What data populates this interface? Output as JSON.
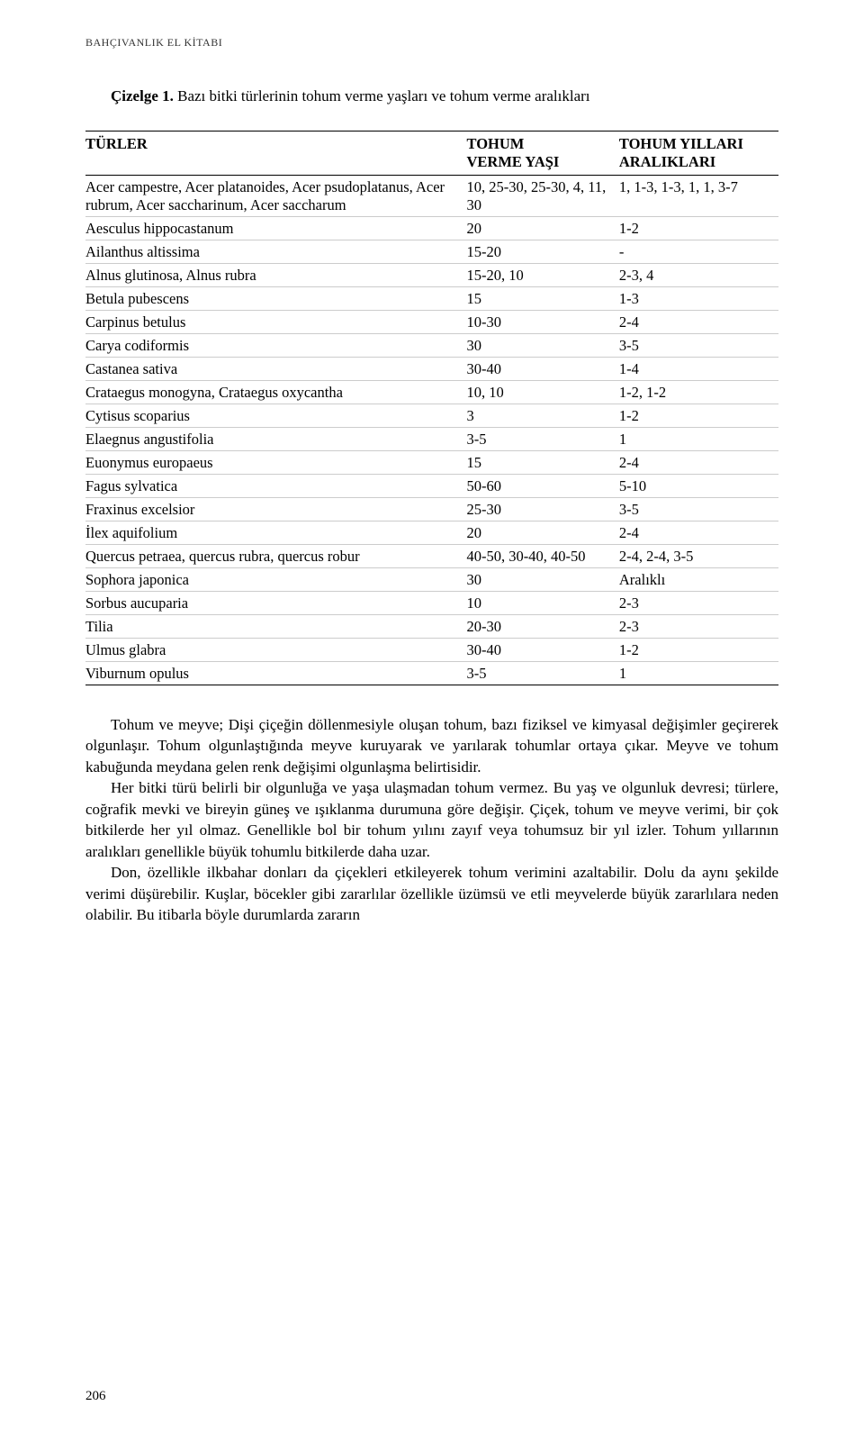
{
  "runningHeader": "BAHÇIVANLIK EL KİTABI",
  "caption": {
    "label": "Çizelge 1.",
    "text": " Bazı bitki türlerinin tohum verme yaşları ve tohum verme aralıkları"
  },
  "table": {
    "headers": {
      "species": "TÜRLER",
      "verme_l1": "TOHUM",
      "verme_l2": "VERME YAŞI",
      "yillari_l1": "TOHUM YILLARI",
      "yillari_l2": "ARALIKLARI"
    },
    "rows": [
      {
        "species": "Acer campestre, Acer platanoides, Acer psudoplatanus, Acer rubrum, Acer saccharinum, Acer saccharum",
        "verme": "10, 25-30, 25-30, 4, 11, 30",
        "yillari": "1, 1-3, 1-3, 1, 1, 3-7"
      },
      {
        "species": "Aesculus hippocastanum",
        "verme": "20",
        "yillari": "1-2"
      },
      {
        "species": "Ailanthus altissima",
        "verme": "15-20",
        "yillari": "-"
      },
      {
        "species": "Alnus glutinosa, Alnus rubra",
        "verme": "15-20, 10",
        "yillari": "2-3, 4"
      },
      {
        "species": "Betula pubescens",
        "verme": "15",
        "yillari": "1-3"
      },
      {
        "species": "Carpinus betulus",
        "verme": "10-30",
        "yillari": "2-4"
      },
      {
        "species": "Carya codiformis",
        "verme": "30",
        "yillari": "3-5"
      },
      {
        "species": "Castanea sativa",
        "verme": "30-40",
        "yillari": "1-4"
      },
      {
        "species": "Crataegus monogyna, Crataegus oxycantha",
        "verme": "10, 10",
        "yillari": "1-2, 1-2"
      },
      {
        "species": "Cytisus scoparius",
        "verme": "3",
        "yillari": "1-2"
      },
      {
        "species": "Elaegnus angustifolia",
        "verme": "3-5",
        "yillari": "1"
      },
      {
        "species": "Euonymus europaeus",
        "verme": "15",
        "yillari": "2-4"
      },
      {
        "species": "Fagus sylvatica",
        "verme": "50-60",
        "yillari": "5-10"
      },
      {
        "species": "Fraxinus excelsior",
        "verme": "25-30",
        "yillari": "3-5"
      },
      {
        "species": "İlex aquifolium",
        "verme": "20",
        "yillari": "2-4"
      },
      {
        "species": "Quercus petraea, quercus rubra, quercus robur",
        "verme": "40-50, 30-40, 40-50",
        "yillari": "2-4, 2-4, 3-5"
      },
      {
        "species": "Sophora japonica",
        "verme": "30",
        "yillari": "Aralıklı"
      },
      {
        "species": "Sorbus aucuparia",
        "verme": "10",
        "yillari": "2-3"
      },
      {
        "species": "Tilia",
        "verme": "20-30",
        "yillari": "2-3"
      },
      {
        "species": "Ulmus glabra",
        "verme": "30-40",
        "yillari": "1-2"
      },
      {
        "species": "Viburnum opulus",
        "verme": "3-5",
        "yillari": "1"
      }
    ]
  },
  "paragraphs": [
    "Tohum ve meyve; Dişi çiçeğin döllenmesiyle oluşan tohum, bazı fiziksel ve kimyasal değişimler geçirerek olgunlaşır. Tohum olgunlaştığında meyve kuruyarak ve yarılarak tohumlar ortaya çıkar. Meyve ve tohum kabuğunda meydana gelen renk değişimi olgunlaşma belirtisidir.",
    "Her bitki türü belirli bir olgunluğa ve yaşa ulaşmadan tohum vermez. Bu yaş ve olgunluk devresi; türlere, coğrafik mevki ve bireyin güneş ve ışıklanma durumuna göre değişir. Çiçek, tohum ve meyve verimi, bir çok bitkilerde her yıl olmaz. Genellikle bol bir tohum yılını zayıf veya tohumsuz bir yıl izler. Tohum yıllarının aralıkları genellikle büyük tohumlu bitkilerde daha uzar.",
    "Don, özellikle ilkbahar donları da çiçekleri etkileyerek tohum verimini azaltabilir. Dolu da aynı şekilde verimi düşürebilir. Kuşlar, böcekler gibi zararlılar özellikle üzümsü ve etli meyvelerde büyük zararlılara neden olabilir. Bu itibarla böyle durumlarda zararın"
  ],
  "pageNumber": "206"
}
